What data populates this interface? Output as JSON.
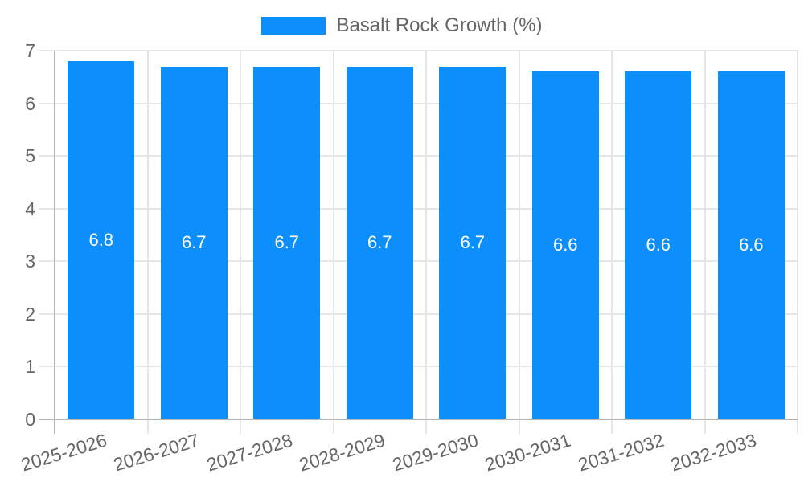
{
  "legend": {
    "label": "Basalt Rock Growth (%)"
  },
  "colors": {
    "bar": "#0D8FFB",
    "grid_light": "#e6e6e6",
    "grid_dark": "#b6b6b6",
    "tick_text": "#666666",
    "data_label_text": "#ffffff",
    "background": "#ffffff"
  },
  "chart_data": {
    "type": "bar",
    "title": "",
    "legend_position": "top",
    "grid": true,
    "categories": [
      "2025-2026",
      "2026-2027",
      "2027-2028",
      "2028-2029",
      "2029-2030",
      "2030-2031",
      "2031-2032",
      "2032-2033"
    ],
    "series": [
      {
        "name": "Basalt Rock Growth (%)",
        "values": [
          6.8,
          6.7,
          6.7,
          6.7,
          6.7,
          6.6,
          6.6,
          6.6
        ]
      }
    ],
    "data_labels": [
      "6.8",
      "6.7",
      "6.7",
      "6.7",
      "6.7",
      "6.6",
      "6.6",
      "6.6"
    ],
    "xlabel": "",
    "ylabel": "",
    "ylim": [
      0,
      7
    ],
    "yticks": [
      0,
      1,
      2,
      3,
      4,
      5,
      6,
      7
    ]
  }
}
